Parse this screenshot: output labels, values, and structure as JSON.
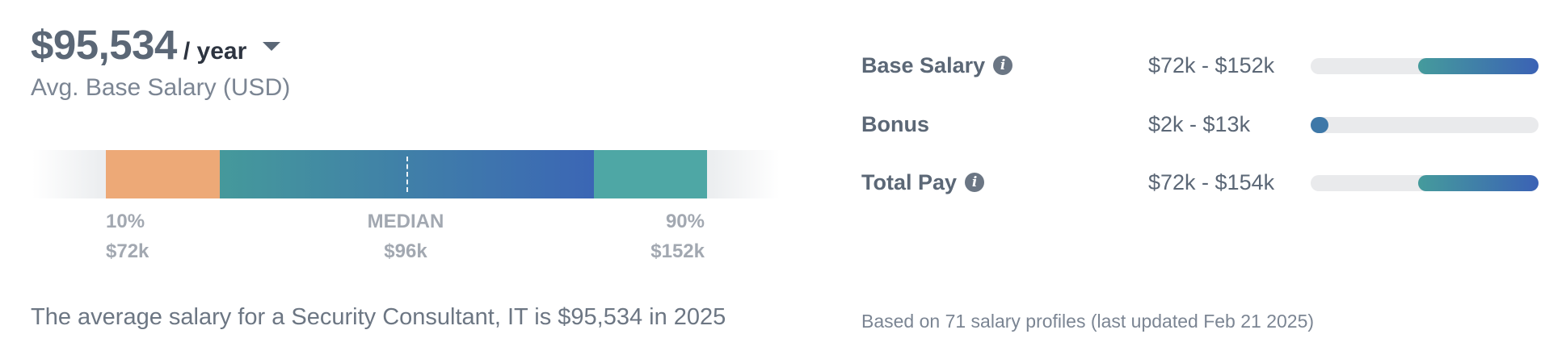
{
  "salary": {
    "amount": "$95,534",
    "period": "/ year",
    "label": "Avg. Base Salary (USD)"
  },
  "distribution": {
    "p10_label": "10%",
    "p10_value": "$72k",
    "median_label": "MEDIAN",
    "median_value": "$96k",
    "p90_label": "90%",
    "p90_value": "$152k",
    "colors": {
      "low": "#eda977",
      "mid_start": "#45999b",
      "mid_end": "#3b66b5",
      "high": "#4ea7a5"
    }
  },
  "summary": "The average salary for a Security Consultant, IT is $95,534 in 2025",
  "pay_ranges": [
    {
      "label": "Base Salary",
      "range": "$72k - $152k",
      "has_info": true,
      "start_fraction": 0.47,
      "end_fraction": 1.0
    },
    {
      "label": "Bonus",
      "range": "$2k - $13k",
      "has_info": false,
      "start_fraction": 0.0,
      "end_fraction": 0.06
    },
    {
      "label": "Total Pay",
      "range": "$72k - $154k",
      "has_info": true,
      "start_fraction": 0.47,
      "end_fraction": 1.0
    }
  ],
  "footnote": "Based on 71 salary profiles (last updated Feb 21 2025)",
  "icons": {
    "info": "info-icon",
    "dropdown": "chevron-down-icon"
  }
}
